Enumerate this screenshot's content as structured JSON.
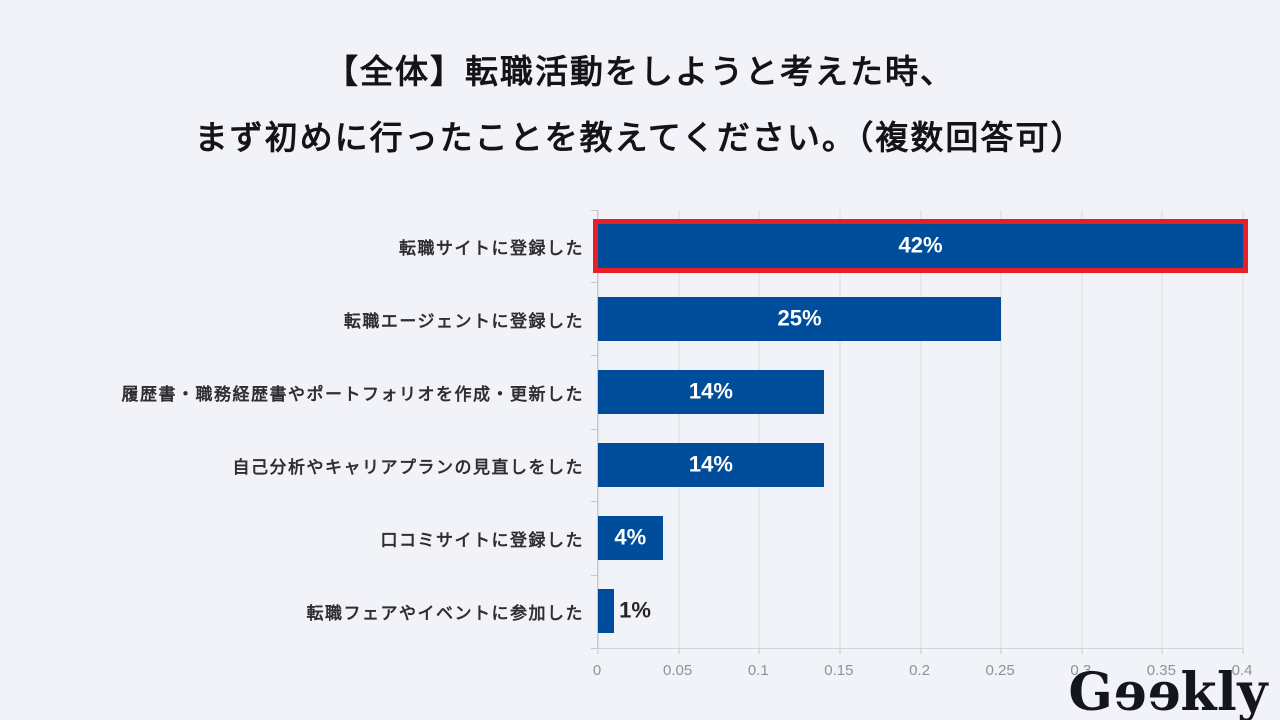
{
  "page": {
    "background": "#f2f3f8"
  },
  "title": {
    "line1": "【全体】転職活動をしようと考えた時、",
    "line2": "まず初めに行ったことを教えてください。（複数回答可）"
  },
  "chart_data": {
    "type": "bar",
    "orientation": "horizontal",
    "title": "【全体】転職活動をしようと考えた時、まず初めに行ったことを教えてください。（複数回答可）",
    "categories": [
      "転職サイトに登録した",
      "転職エージェントに登録した",
      "履歴書・職務経歴書やポートフォリオを作成・更新した",
      "自己分析やキャリアプランの見直しをした",
      "口コミサイトに登録した",
      "転職フェアやイベントに参加した"
    ],
    "values": [
      0.42,
      0.25,
      0.14,
      0.14,
      0.04,
      0.01
    ],
    "value_labels": [
      "42%",
      "25%",
      "14%",
      "14%",
      "4%",
      "1%"
    ],
    "highlighted_index": 0,
    "xlim": [
      0,
      0.4
    ],
    "x_ticks": [
      "0",
      "0.05",
      "0.1",
      "0.15",
      "0.2",
      "0.25",
      "0.3",
      "0.35",
      "0.4"
    ],
    "grid": true,
    "legend": false,
    "bar_color": "#004e9b",
    "highlight_border_color": "#e81e28",
    "inside_label_color": "#ffffff",
    "outside_label_color": "#232427",
    "axis_tick_color": "#8e9196"
  },
  "logo": {
    "g": "G",
    "e1": "e",
    "e2": "e",
    "kly": "kly",
    "color": "#15151d"
  }
}
